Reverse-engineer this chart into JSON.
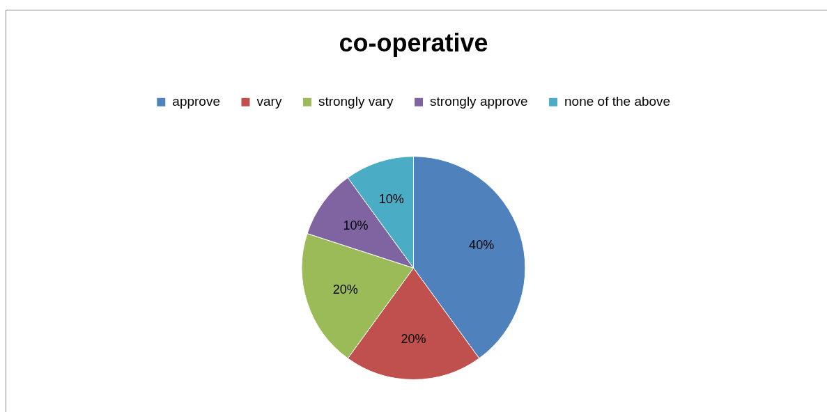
{
  "chart_data": {
    "type": "pie",
    "title": "co-operative",
    "categories": [
      "approve",
      "vary",
      "strongly vary",
      "strongly approve",
      "none of the above"
    ],
    "values": [
      40,
      20,
      20,
      10,
      10
    ],
    "colors": [
      "#4f81bd",
      "#c0504d",
      "#9bbb59",
      "#8064a2",
      "#4bacc6"
    ],
    "value_labels": [
      "40%",
      "20%",
      "20%",
      "10%",
      "10%"
    ],
    "legend": "top"
  }
}
